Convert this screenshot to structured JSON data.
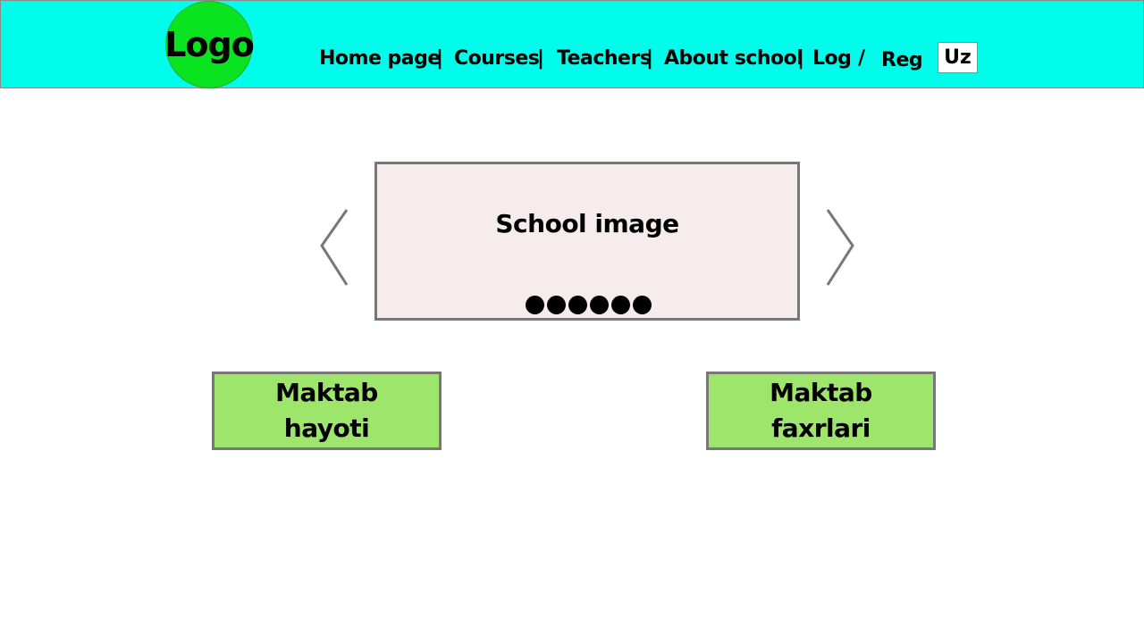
{
  "header": {
    "logo": "Logo",
    "nav": {
      "home": "Home page",
      "courses": "Courses",
      "teachers": "Teachers",
      "about": "About school",
      "log": "Log",
      "reg": "Reg",
      "separator": "|",
      "slash": "/"
    },
    "lang": "Uz"
  },
  "slider": {
    "title": "School image",
    "dot_count": 6,
    "prev_icon": "chevron-left-icon",
    "next_icon": "chevron-right-icon"
  },
  "cards": {
    "left": {
      "line1": "Maktab",
      "line2": "hayoti"
    },
    "right": {
      "line1": "Maktab",
      "line2": "faxrlari"
    }
  },
  "colors": {
    "header_bg": "#00fdeb",
    "logo_bg": "#0ae31f",
    "slider_bg": "#f6eced",
    "card_bg": "#9de56b",
    "border": "#777777"
  }
}
